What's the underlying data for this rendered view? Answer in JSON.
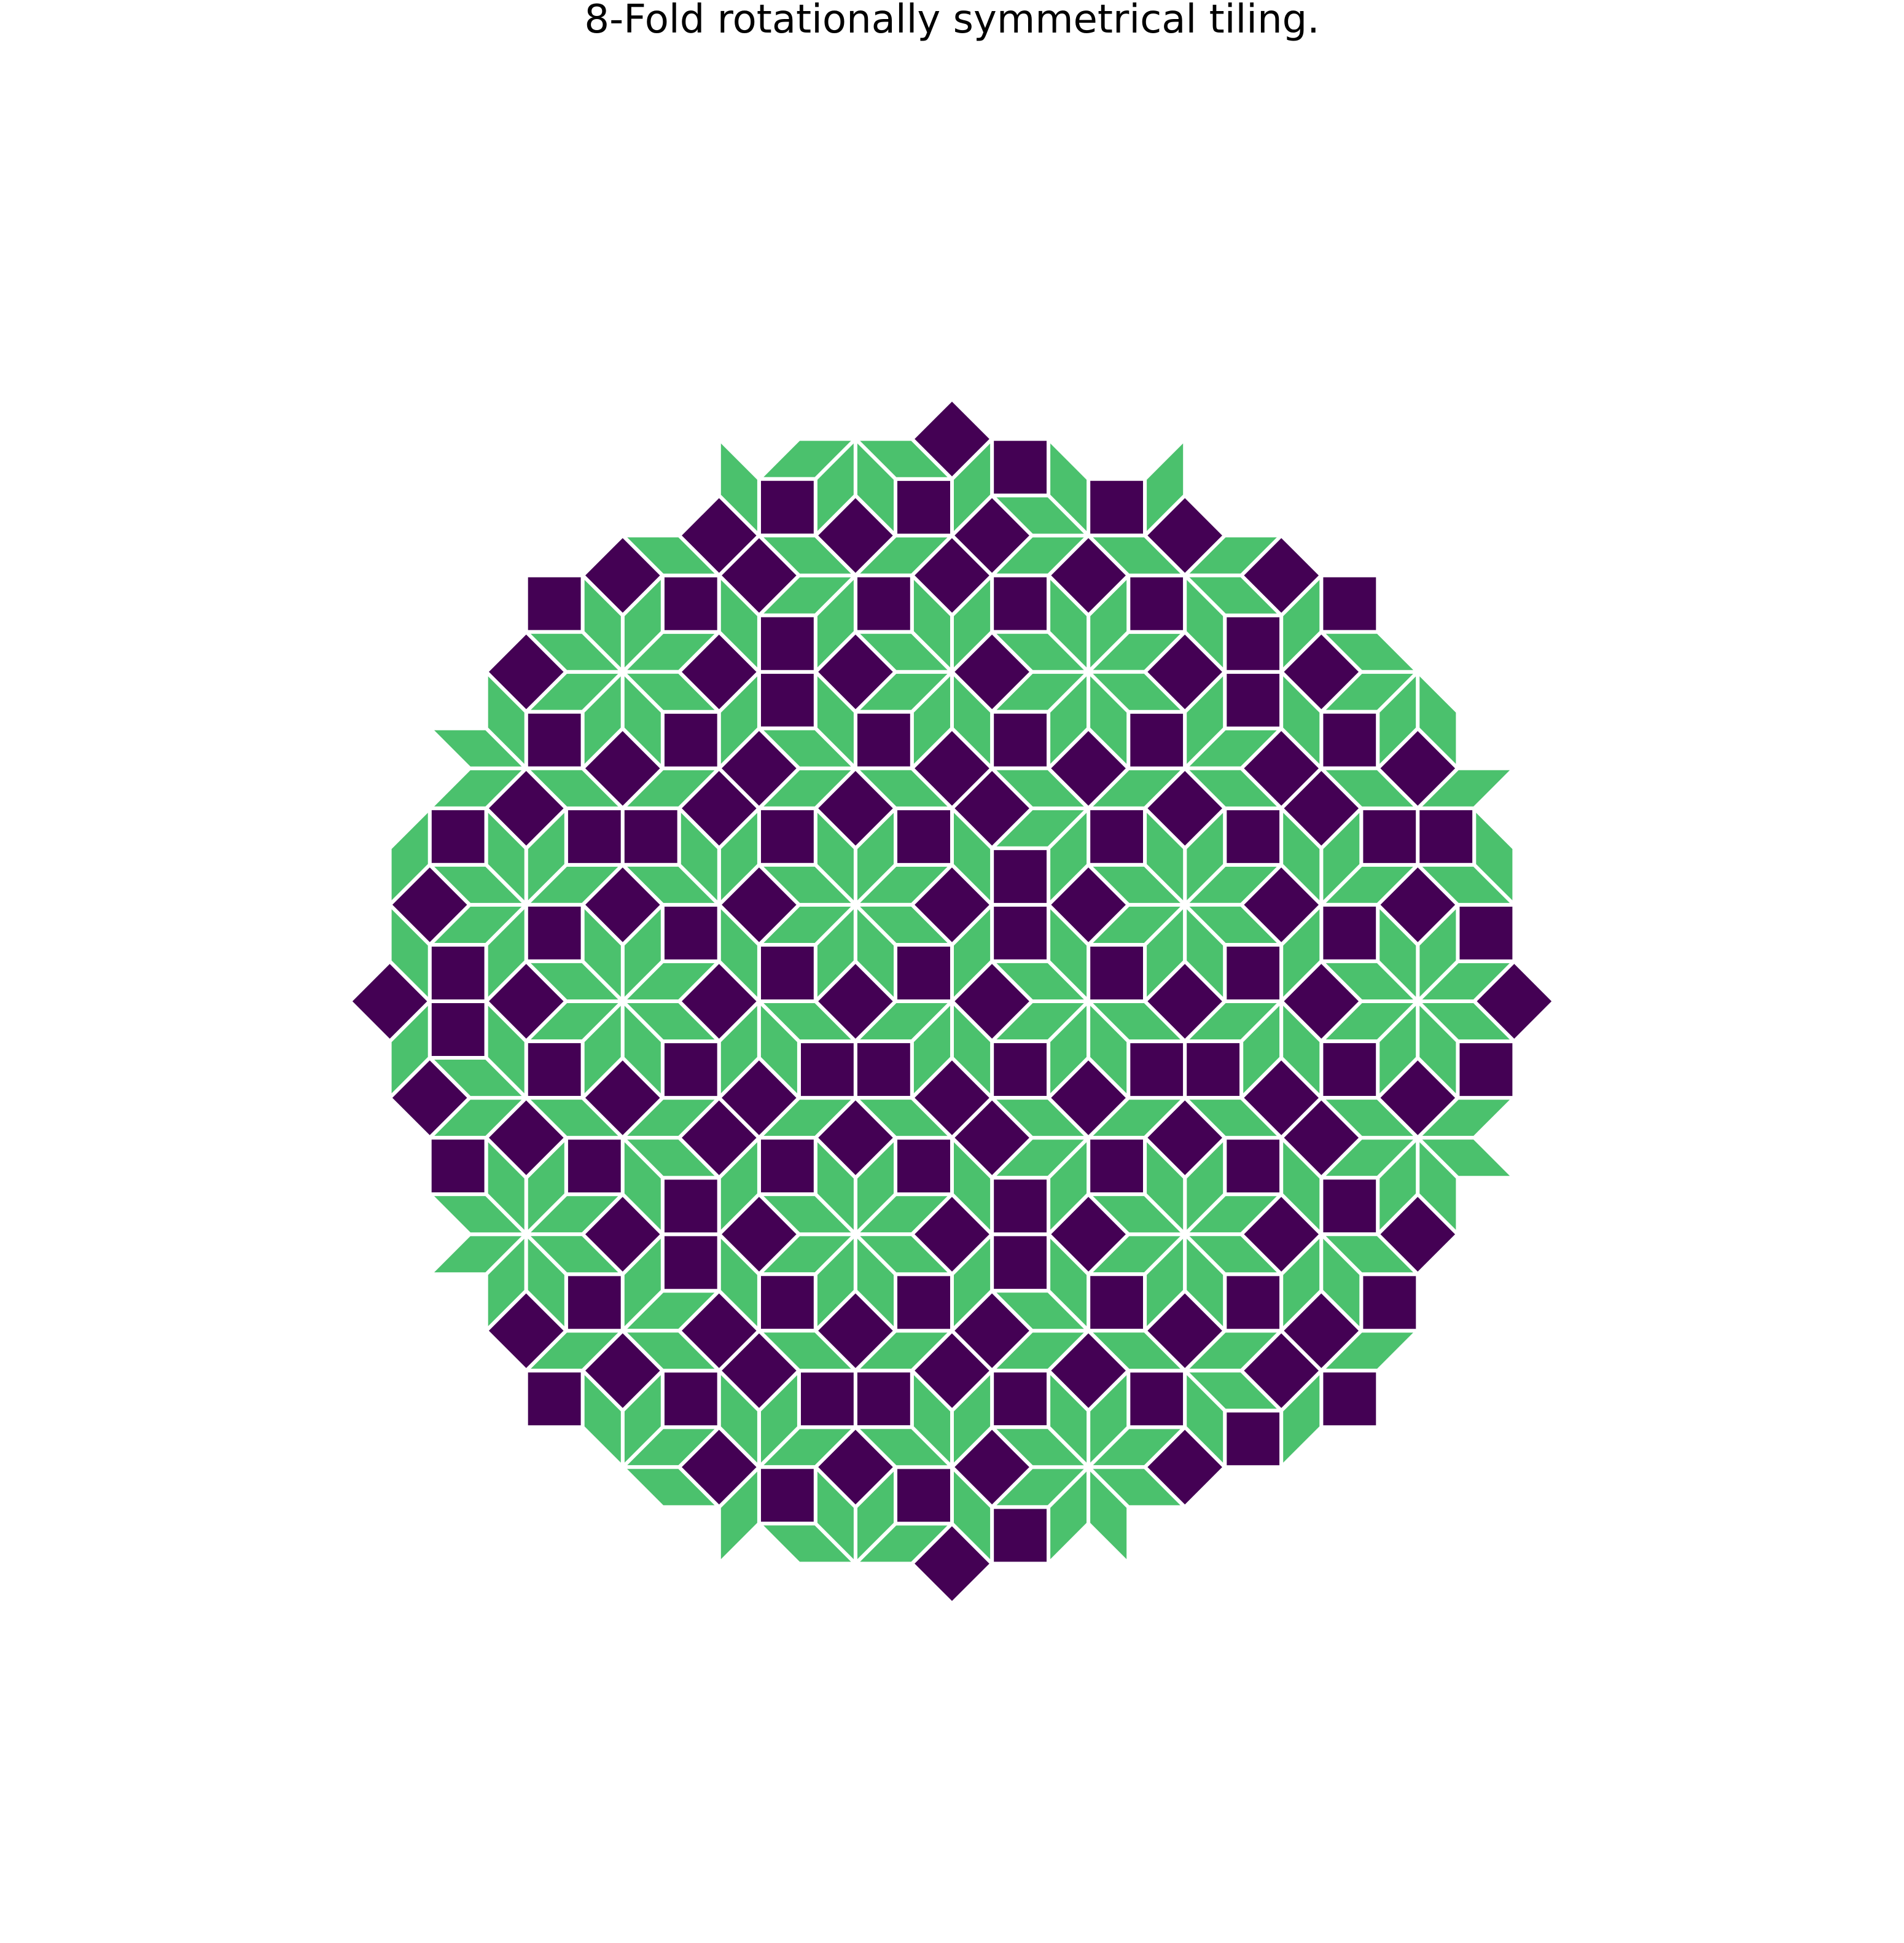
{
  "figure": {
    "title": "8-Fold rotationally symmetrical tiling."
  },
  "tiling": {
    "symmetry_order": 8,
    "tile_types": [
      {
        "name": "square",
        "color": "#440154"
      },
      {
        "name": "rhombus",
        "color": "#4bc16d"
      }
    ],
    "edge_color": "#ffffff"
  }
}
